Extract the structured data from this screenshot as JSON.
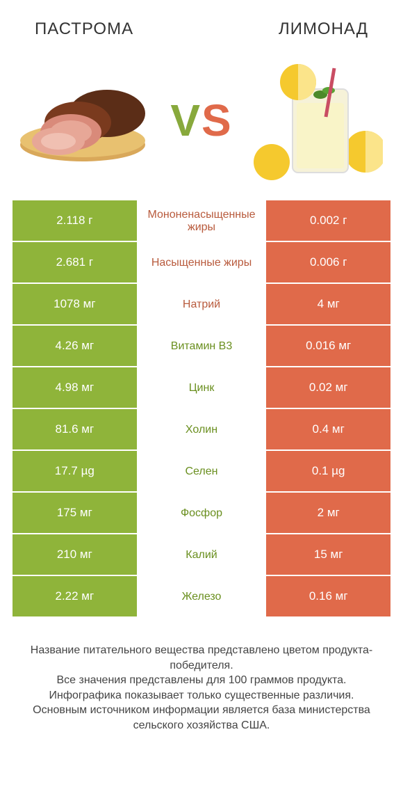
{
  "header": {
    "left_title": "ПАСТРОМА",
    "right_title": "ЛИМОНАД"
  },
  "vs": {
    "v": "V",
    "s": "S"
  },
  "colors": {
    "green": "#8fb43a",
    "orange": "#e06a4a",
    "green_text": "#6a8f1f",
    "brown_text": "#b85a3c"
  },
  "rows": [
    {
      "left": "2.118 г",
      "label": "Мононенасыщенные жиры",
      "label_color": "brown",
      "right": "0.002 г"
    },
    {
      "left": "2.681 г",
      "label": "Насыщенные жиры",
      "label_color": "brown",
      "right": "0.006 г"
    },
    {
      "left": "1078 мг",
      "label": "Натрий",
      "label_color": "brown",
      "right": "4 мг"
    },
    {
      "left": "4.26 мг",
      "label": "Витамин B3",
      "label_color": "green",
      "right": "0.016 мг"
    },
    {
      "left": "4.98 мг",
      "label": "Цинк",
      "label_color": "green",
      "right": "0.02 мг"
    },
    {
      "left": "81.6 мг",
      "label": "Холин",
      "label_color": "green",
      "right": "0.4 мг"
    },
    {
      "left": "17.7 µg",
      "label": "Селен",
      "label_color": "green",
      "right": "0.1 µg"
    },
    {
      "left": "175 мг",
      "label": "Фосфор",
      "label_color": "green",
      "right": "2 мг"
    },
    {
      "left": "210 мг",
      "label": "Калий",
      "label_color": "green",
      "right": "15 мг"
    },
    {
      "left": "2.22 мг",
      "label": "Железо",
      "label_color": "green",
      "right": "0.16 мг"
    }
  ],
  "footer": {
    "line1": "Название питательного вещества представлено цветом продукта-победителя.",
    "line2": "Все значения представлены для 100 граммов продукта.",
    "line3": "Инфографика показывает только существенные различия.",
    "line4": "Основным источником информации является база министерства сельского хозяйства США."
  }
}
